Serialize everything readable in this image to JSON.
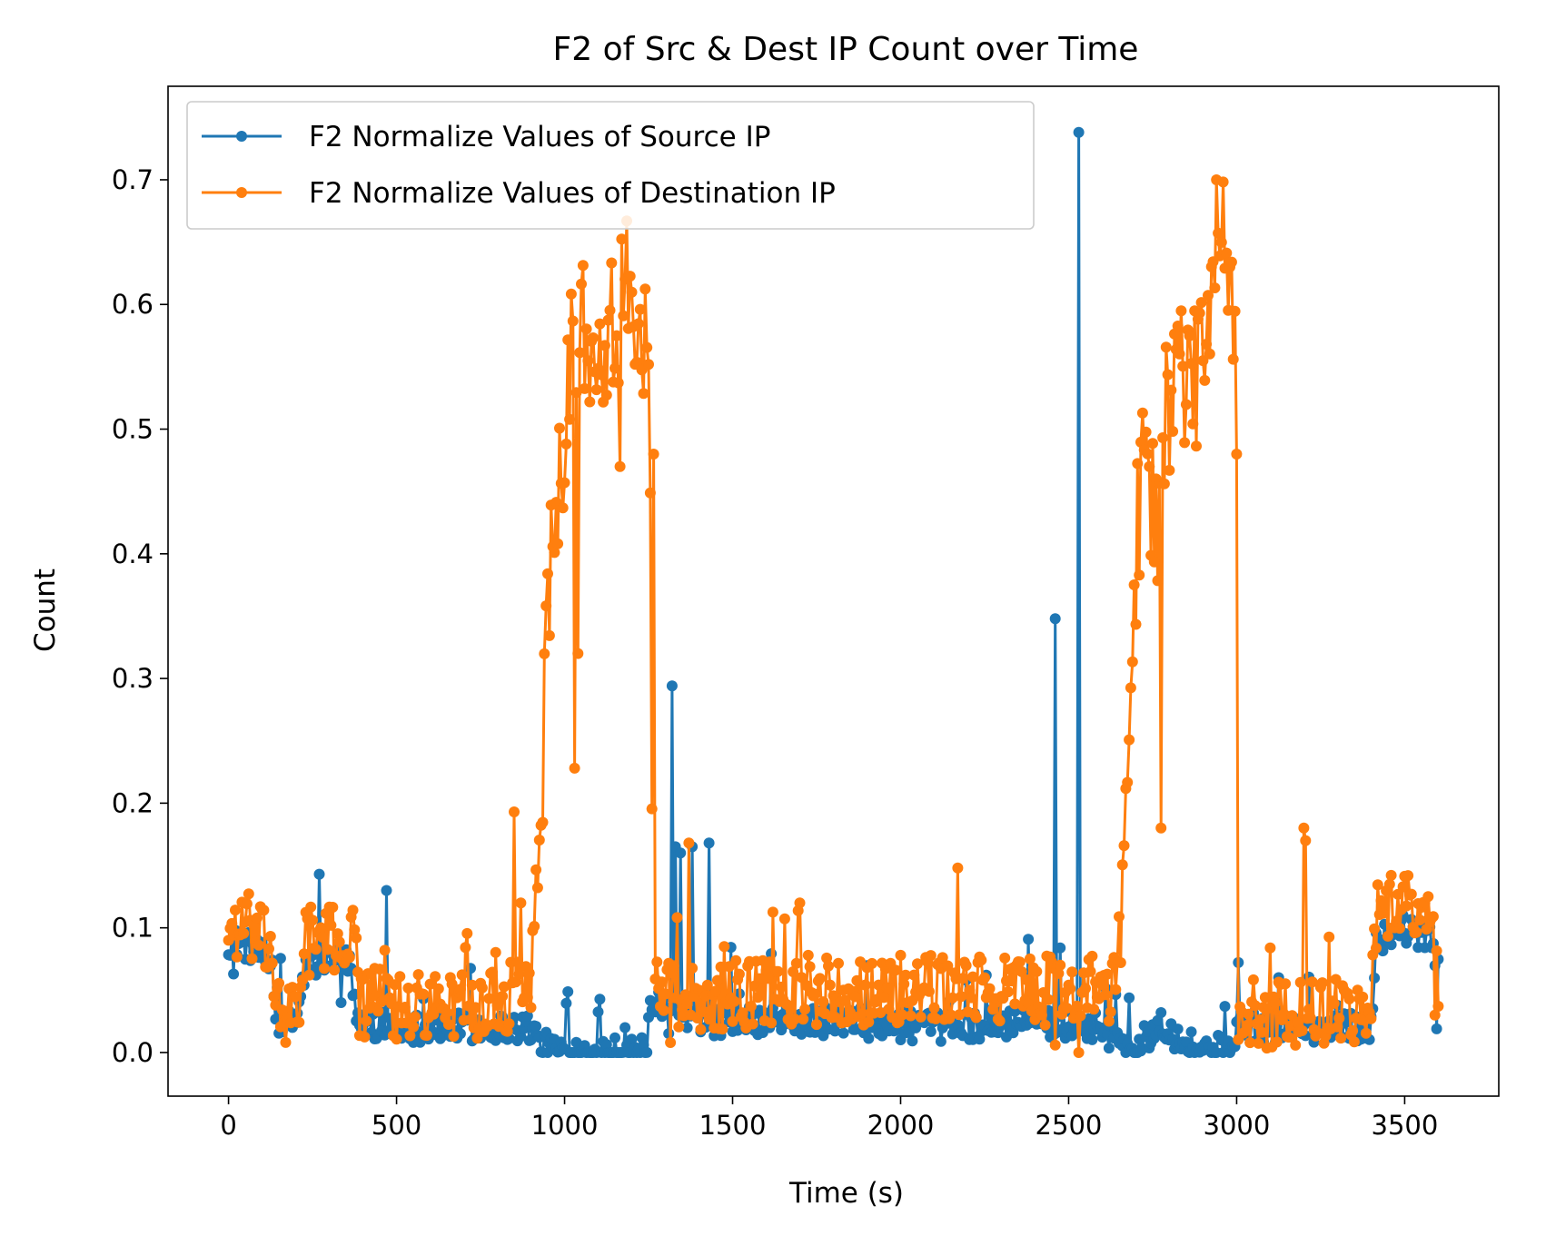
{
  "chart_data": {
    "type": "line",
    "title": "F2 of Src & Dest IP Count over Time",
    "xlabel": "Time (s)",
    "ylabel": "Count",
    "xlim": [
      -180,
      3780
    ],
    "ylim": [
      -0.035,
      0.775
    ],
    "xticks": [
      0,
      500,
      1000,
      1500,
      2000,
      2500,
      3000,
      3500
    ],
    "yticks": [
      0.0,
      0.1,
      0.2,
      0.3,
      0.4,
      0.5,
      0.6,
      0.7
    ],
    "xtick_labels": [
      "0",
      "500",
      "1000",
      "1500",
      "2000",
      "2500",
      "3000",
      "3500"
    ],
    "ytick_labels": [
      "0.0",
      "0.1",
      "0.2",
      "0.3",
      "0.4",
      "0.5",
      "0.6",
      "0.7"
    ],
    "legend_position": "upper-left",
    "grid": false,
    "x_range": [
      0,
      3600
    ],
    "step": 5,
    "series": [
      {
        "name": "F2 Normalize Values of Source IP",
        "color": "#1f77b4",
        "marker": "circle",
        "baseline": [
          [
            0,
            0.09
          ],
          [
            60,
            0.085
          ],
          [
            130,
            0.07
          ],
          [
            145,
            0.02
          ],
          [
            200,
            0.025
          ],
          [
            230,
            0.07
          ],
          [
            360,
            0.075
          ],
          [
            385,
            0.025
          ],
          [
            500,
            0.02
          ],
          [
            700,
            0.02
          ],
          [
            900,
            0.02
          ],
          [
            935,
            0.005
          ],
          [
            1000,
            0.001
          ],
          [
            1240,
            0.001
          ],
          [
            1255,
            0.03
          ],
          [
            1290,
            0.04
          ],
          [
            1310,
            0.025
          ],
          [
            1500,
            0.025
          ],
          [
            1800,
            0.025
          ],
          [
            2100,
            0.02
          ],
          [
            2400,
            0.025
          ],
          [
            2600,
            0.02
          ],
          [
            2650,
            0.008
          ],
          [
            2700,
            0.003
          ],
          [
            2780,
            0.025
          ],
          [
            2830,
            0.01
          ],
          [
            2900,
            0.003
          ],
          [
            2995,
            0.002
          ],
          [
            3000,
            0.02
          ],
          [
            3400,
            0.02
          ],
          [
            3415,
            0.09
          ],
          [
            3500,
            0.1
          ],
          [
            3580,
            0.09
          ],
          [
            3600,
            0.07
          ]
        ],
        "noise": 0.012,
        "spikes": [
          [
            15,
            0.063
          ],
          [
            270,
            0.143
          ],
          [
            337,
            0.04
          ],
          [
            470,
            0.13
          ],
          [
            1180,
            0.02
          ],
          [
            1318,
            0.294
          ],
          [
            1330,
            0.165
          ],
          [
            1345,
            0.16
          ],
          [
            1380,
            0.165
          ],
          [
            1428,
            0.168
          ],
          [
            2462,
            0.348
          ],
          [
            2530,
            0.738
          ],
          [
            2775,
            0.032
          ],
          [
            3597,
            0.019
          ]
        ]
      },
      {
        "name": "F2 Normalize Values of Destination IP",
        "color": "#ff7f0e",
        "marker": "circle",
        "baseline": [
          [
            0,
            0.1
          ],
          [
            60,
            0.1
          ],
          [
            130,
            0.08
          ],
          [
            145,
            0.03
          ],
          [
            220,
            0.03
          ],
          [
            230,
            0.09
          ],
          [
            380,
            0.09
          ],
          [
            390,
            0.04
          ],
          [
            480,
            0.04
          ],
          [
            520,
            0.035
          ],
          [
            800,
            0.04
          ],
          [
            880,
            0.05
          ],
          [
            900,
            0.06
          ],
          [
            930,
            0.2
          ],
          [
            960,
            0.42
          ],
          [
            990,
            0.48
          ],
          [
            1010,
            0.55
          ],
          [
            1030,
            0.58
          ],
          [
            1100,
            0.58
          ],
          [
            1200,
            0.6
          ],
          [
            1245,
            0.58
          ],
          [
            1255,
            0.45
          ],
          [
            1262,
            0.07
          ],
          [
            1300,
            0.05
          ],
          [
            1400,
            0.045
          ],
          [
            1700,
            0.05
          ],
          [
            2100,
            0.05
          ],
          [
            2400,
            0.05
          ],
          [
            2640,
            0.05
          ],
          [
            2655,
            0.1
          ],
          [
            2700,
            0.4
          ],
          [
            2730,
            0.5
          ],
          [
            2760,
            0.42
          ],
          [
            2780,
            0.5
          ],
          [
            2820,
            0.55
          ],
          [
            2860,
            0.52
          ],
          [
            2920,
            0.6
          ],
          [
            2960,
            0.64
          ],
          [
            2995,
            0.6
          ],
          [
            3000,
            0.03
          ],
          [
            3400,
            0.035
          ],
          [
            3415,
            0.11
          ],
          [
            3500,
            0.12
          ],
          [
            3570,
            0.12
          ],
          [
            3600,
            0.06
          ]
        ],
        "noise": 0.028,
        "spikes": [
          [
            850,
            0.193
          ],
          [
            870,
            0.12
          ],
          [
            1032,
            0.228
          ],
          [
            1040,
            0.32
          ],
          [
            1165,
            0.47
          ],
          [
            1185,
            0.667
          ],
          [
            1265,
            0.48
          ],
          [
            1315,
            0.008
          ],
          [
            1370,
            0.168
          ],
          [
            1700,
            0.12
          ],
          [
            2170,
            0.148
          ],
          [
            2462,
            0.006
          ],
          [
            2530,
            0.0
          ],
          [
            2740,
            0.47
          ],
          [
            2760,
            0.46
          ],
          [
            2775,
            0.18
          ],
          [
            2940,
            0.7
          ],
          [
            3000,
            0.48
          ],
          [
            3200,
            0.18
          ],
          [
            3205,
            0.17
          ],
          [
            3590,
            0.03
          ]
        ]
      }
    ]
  }
}
